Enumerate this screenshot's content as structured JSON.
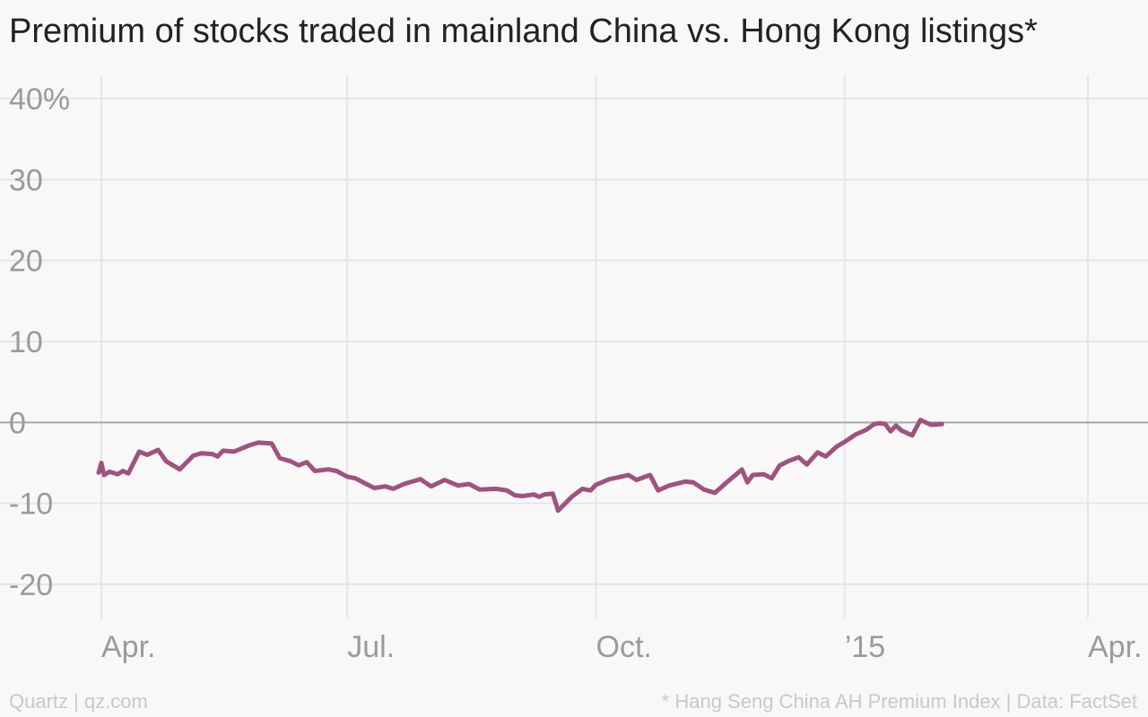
{
  "header": {
    "title": "Premium of stocks traded in mainland China vs. Hong Kong listings*"
  },
  "footer": {
    "credit": "Quartz | qz.com",
    "source": "* Hang Seng China AH Premium Index | Data: FactSet"
  },
  "colors": {
    "line": "#a0527f",
    "grid": "#e6e6e6",
    "zero": "#a8a8a8",
    "tick_text": "#9a9a9a",
    "background": "#f8f8f8"
  },
  "chart_data": {
    "type": "line",
    "title": "Premium of stocks traded in mainland China vs. Hong Kong listings*",
    "xlabel": "",
    "ylabel": "",
    "ylim": [
      -25,
      40
    ],
    "y_ticks": [
      {
        "value": 40,
        "label": "40%"
      },
      {
        "value": 30,
        "label": "30"
      },
      {
        "value": 20,
        "label": "20"
      },
      {
        "value": 10,
        "label": "10"
      },
      {
        "value": 0,
        "label": "0"
      },
      {
        "value": -10,
        "label": "-10"
      },
      {
        "value": -20,
        "label": "-20"
      }
    ],
    "x_ticks": [
      {
        "date": "2014-04-01",
        "label": "Apr."
      },
      {
        "date": "2014-07-01",
        "label": "Jul."
      },
      {
        "date": "2014-10-01",
        "label": "Oct."
      },
      {
        "date": "2015-01-01",
        "label": "’15"
      },
      {
        "date": "2015-04-01",
        "label": "Apr."
      }
    ],
    "xlim": [
      "2014-03-26",
      "2015-04-14"
    ],
    "grid": true,
    "series": [
      {
        "values": [
          [
            "2014-03-31",
            -6.2
          ],
          [
            "2014-04-01",
            -5.0
          ],
          [
            "2014-04-02",
            -6.5
          ],
          [
            "2014-04-04",
            -6.1
          ],
          [
            "2014-04-07",
            -6.4
          ],
          [
            "2014-04-09",
            -6.0
          ],
          [
            "2014-04-11",
            -6.3
          ],
          [
            "2014-04-15",
            -3.6
          ],
          [
            "2014-04-18",
            -4.0
          ],
          [
            "2014-04-22",
            -3.4
          ],
          [
            "2014-04-25",
            -4.8
          ],
          [
            "2014-04-30",
            -5.8
          ],
          [
            "2014-05-05",
            -4.1
          ],
          [
            "2014-05-08",
            -3.8
          ],
          [
            "2014-05-12",
            -3.9
          ],
          [
            "2014-05-14",
            -4.2
          ],
          [
            "2014-05-16",
            -3.5
          ],
          [
            "2014-05-20",
            -3.6
          ],
          [
            "2014-05-26",
            -2.8
          ],
          [
            "2014-05-29",
            -2.5
          ],
          [
            "2014-06-03",
            -2.6
          ],
          [
            "2014-06-06",
            -4.4
          ],
          [
            "2014-06-10",
            -4.8
          ],
          [
            "2014-06-13",
            -5.3
          ],
          [
            "2014-06-16",
            -4.9
          ],
          [
            "2014-06-19",
            -6.0
          ],
          [
            "2014-06-24",
            -5.8
          ],
          [
            "2014-06-27",
            -6.0
          ],
          [
            "2014-07-01",
            -6.7
          ],
          [
            "2014-07-04",
            -6.9
          ],
          [
            "2014-07-08",
            -7.6
          ],
          [
            "2014-07-11",
            -8.1
          ],
          [
            "2014-07-15",
            -7.9
          ],
          [
            "2014-07-18",
            -8.2
          ],
          [
            "2014-07-22",
            -7.6
          ],
          [
            "2014-07-28",
            -7.0
          ],
          [
            "2014-08-01",
            -7.9
          ],
          [
            "2014-08-06",
            -7.1
          ],
          [
            "2014-08-11",
            -7.8
          ],
          [
            "2014-08-15",
            -7.6
          ],
          [
            "2014-08-19",
            -8.3
          ],
          [
            "2014-08-25",
            -8.2
          ],
          [
            "2014-08-29",
            -8.4
          ],
          [
            "2014-09-01",
            -9.0
          ],
          [
            "2014-09-04",
            -9.1
          ],
          [
            "2014-09-08",
            -8.9
          ],
          [
            "2014-09-10",
            -9.2
          ],
          [
            "2014-09-12",
            -8.9
          ],
          [
            "2014-09-15",
            -8.8
          ],
          [
            "2014-09-17",
            -10.9
          ],
          [
            "2014-09-22",
            -9.2
          ],
          [
            "2014-09-26",
            -8.2
          ],
          [
            "2014-09-29",
            -8.4
          ],
          [
            "2014-10-01",
            -7.7
          ],
          [
            "2014-10-06",
            -7.0
          ],
          [
            "2014-10-09",
            -6.8
          ],
          [
            "2014-10-13",
            -6.5
          ],
          [
            "2014-10-16",
            -7.1
          ],
          [
            "2014-10-21",
            -6.5
          ],
          [
            "2014-10-24",
            -8.4
          ],
          [
            "2014-10-28",
            -7.8
          ],
          [
            "2014-11-03",
            -7.3
          ],
          [
            "2014-11-06",
            -7.4
          ],
          [
            "2014-11-10",
            -8.3
          ],
          [
            "2014-11-14",
            -8.7
          ],
          [
            "2014-11-18",
            -7.5
          ],
          [
            "2014-11-22",
            -6.4
          ],
          [
            "2014-11-24",
            -5.8
          ],
          [
            "2014-11-26",
            -7.4
          ],
          [
            "2014-11-28",
            -6.5
          ],
          [
            "2014-12-02",
            -6.4
          ],
          [
            "2014-12-05",
            -6.9
          ],
          [
            "2014-12-08",
            -5.3
          ],
          [
            "2014-12-11",
            -4.8
          ],
          [
            "2014-12-15",
            -4.3
          ],
          [
            "2014-12-18",
            -5.2
          ],
          [
            "2014-12-22",
            -3.7
          ],
          [
            "2014-12-25",
            -4.2
          ],
          [
            "2014-12-29",
            -3.0
          ],
          [
            "2015-01-01",
            -2.4
          ],
          [
            "2015-01-05",
            -1.5
          ],
          [
            "2015-01-09",
            -0.9
          ],
          [
            "2015-01-12",
            -0.2
          ],
          [
            "2015-01-14",
            -0.1
          ],
          [
            "2015-01-16",
            -0.2
          ],
          [
            "2015-01-18",
            -1.1
          ],
          [
            "2015-01-20",
            -0.4
          ],
          [
            "2015-01-22",
            -1.0
          ],
          [
            "2015-01-26",
            -1.6
          ],
          [
            "2015-01-29",
            0.3
          ],
          [
            "2015-02-02",
            -0.3
          ],
          [
            "2015-02-06",
            -0.2
          ]
        ],
        "color": "#a0527f"
      }
    ]
  }
}
